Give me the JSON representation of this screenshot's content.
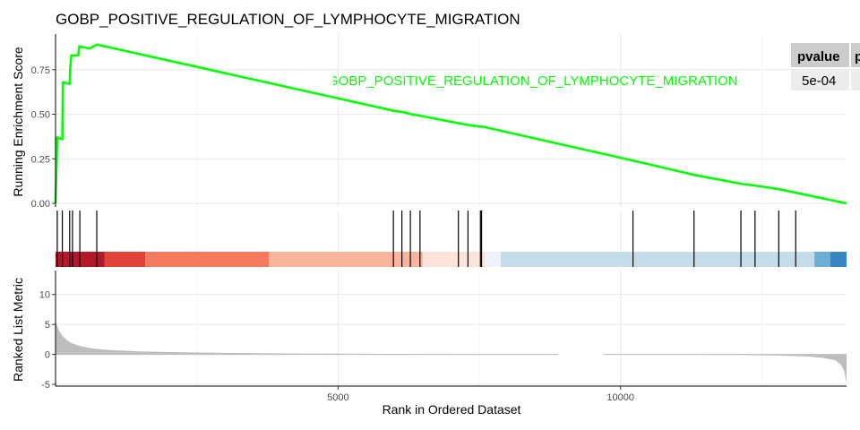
{
  "chart_data": {
    "type": "line",
    "title": "GOBP_POSITIVE_REGULATION_OF_LYMPHOCYTE_MIGRATION",
    "xlabel": "Rank in Ordered Dataset",
    "xlim": [
      0,
      14000
    ],
    "x_ticks": [
      5000,
      10000
    ],
    "annotation": "GOBP_POSITIVE_REGULATION_OF_LYMPHOCYTE_MIGRATION",
    "line_color": "#00ff00",
    "es_panel": {
      "ylabel": "Running Enrichment Score",
      "ylim": [
        -0.02,
        0.95
      ],
      "y_ticks": [
        "0.00",
        "0.25",
        "0.50",
        "0.75"
      ],
      "y_tick_values": [
        0,
        0.25,
        0.5,
        0.75
      ],
      "x": [
        0,
        30,
        120,
        130,
        250,
        260,
        280,
        400,
        420,
        430,
        590,
        610,
        730,
        745,
        5980,
        6180,
        6300,
        6480,
        7130,
        7300,
        7520,
        7570,
        10220,
        11300,
        12130,
        12380,
        12800,
        13100,
        14000
      ],
      "y": [
        0,
        0.37,
        0.36,
        0.68,
        0.67,
        0.76,
        0.83,
        0.83,
        0.88,
        0.88,
        0.87,
        0.87,
        0.89,
        0.89,
        0.52,
        0.51,
        0.5,
        0.49,
        0.45,
        0.44,
        0.43,
        0.43,
        0.24,
        0.16,
        0.11,
        0.1,
        0.08,
        0.06,
        0.0
      ]
    },
    "hits": [
      30,
      120,
      250,
      300,
      430,
      730,
      5980,
      6130,
      6280,
      6450,
      7130,
      7300,
      7520,
      7540,
      10220,
      11300,
      12130,
      12380,
      12800,
      13100
    ],
    "color_bands": [
      {
        "from": 0,
        "to": 870,
        "color": "#b2182b"
      },
      {
        "from": 870,
        "to": 1590,
        "color": "#e04438"
      },
      {
        "from": 1590,
        "to": 3780,
        "color": "#f67b5e"
      },
      {
        "from": 3780,
        "to": 6500,
        "color": "#fcb59d"
      },
      {
        "from": 6500,
        "to": 7600,
        "color": "#fde4da"
      },
      {
        "from": 7600,
        "to": 7880,
        "color": "#eef3f9"
      },
      {
        "from": 7880,
        "to": 13430,
        "color": "#c5dcea"
      },
      {
        "from": 13430,
        "to": 13710,
        "color": "#6baed6"
      },
      {
        "from": 13710,
        "to": 14000,
        "color": "#3a86c4"
      }
    ],
    "ranked_panel": {
      "ylabel": "Ranked List Metric",
      "ylim": [
        -5.3,
        14
      ],
      "y_ticks": [
        "10",
        "5",
        "0",
        "-5"
      ],
      "y_tick_values": [
        10,
        5,
        0,
        -5
      ],
      "fill_color": "#bebebe",
      "x": [
        0,
        20,
        60,
        120,
        200,
        300,
        450,
        600,
        800,
        1000,
        1500,
        2000,
        3000,
        4000,
        5000,
        6000,
        7000,
        8000,
        8900,
        9700,
        10500,
        11000,
        12000,
        12800,
        13300,
        13600,
        13800,
        13900,
        13960,
        14000
      ],
      "y": [
        6.0,
        5.0,
        4.0,
        3.1,
        2.4,
        1.8,
        1.35,
        1.05,
        0.85,
        0.7,
        0.5,
        0.38,
        0.25,
        0.17,
        0.12,
        0.08,
        0.05,
        0.02,
        0.0,
        0.0,
        -0.03,
        -0.05,
        -0.1,
        -0.2,
        -0.35,
        -0.6,
        -1.0,
        -1.7,
        -2.8,
        -4.8
      ]
    },
    "gaps": [
      [
        8900,
        9700
      ]
    ]
  },
  "table": {
    "headers": [
      "pvalue",
      "p"
    ],
    "rows": [
      [
        "5e-04",
        ""
      ]
    ],
    "header_color": "#cccccc",
    "cell_color": "#ededed"
  }
}
